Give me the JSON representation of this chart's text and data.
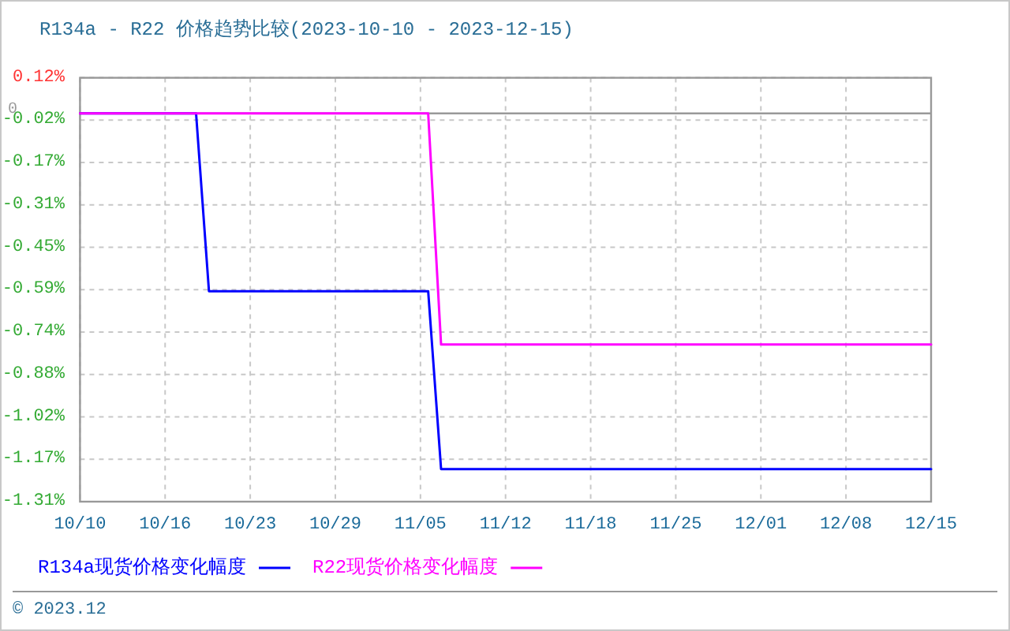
{
  "chart_data": {
    "type": "line",
    "title": "R134a - R22 价格趋势比较(2023-10-10 - 2023-12-15)",
    "series": [
      {
        "name": "R134a现货价格变化幅度",
        "color": "#0000ff",
        "x": [
          "2023-10-10",
          "2023-10-19",
          "2023-10-20",
          "2023-11-06",
          "2023-11-07",
          "2023-12-15"
        ],
        "values": [
          0,
          0,
          -0.6,
          -0.6,
          -1.2,
          -1.2
        ]
      },
      {
        "name": "R22现货价格变化幅度",
        "color": "#ff00ff",
        "x": [
          "2023-10-10",
          "2023-11-06",
          "2023-11-07",
          "2023-12-15"
        ],
        "values": [
          0,
          0,
          -0.78,
          -0.78
        ]
      }
    ],
    "xlim": [
      "2023-10-10",
      "2023-12-15"
    ],
    "xticks": [
      {
        "value": "2023-10-10",
        "label": "10/10"
      },
      {
        "value": "2023-10-16T14:24",
        "label": "10/16"
      },
      {
        "value": "2023-10-23T04:48",
        "label": "10/23"
      },
      {
        "value": "2023-10-29T19:12",
        "label": "10/29"
      },
      {
        "value": "2023-11-05T09:36",
        "label": "11/05"
      },
      {
        "value": "2023-11-12",
        "label": "11/12"
      },
      {
        "value": "2023-11-18T14:24",
        "label": "11/18"
      },
      {
        "value": "2023-11-25T04:48",
        "label": "11/25"
      },
      {
        "value": "2023-12-01T19:12",
        "label": "12/01"
      },
      {
        "value": "2023-12-08T09:36",
        "label": "12/08"
      },
      {
        "value": "2023-12-15",
        "label": "12/15"
      }
    ],
    "ylim": [
      -1.31,
      0.12
    ],
    "yticks": [
      {
        "value": 0.12,
        "label": "0.12%"
      },
      {
        "value": -0.023,
        "label": "-0.02%"
      },
      {
        "value": -0.166,
        "label": "-0.17%"
      },
      {
        "value": -0.309,
        "label": "-0.31%"
      },
      {
        "value": -0.452,
        "label": "-0.45%"
      },
      {
        "value": -0.595,
        "label": "-0.59%"
      },
      {
        "value": -0.738,
        "label": "-0.74%"
      },
      {
        "value": -0.881,
        "label": "-0.88%"
      },
      {
        "value": -1.024,
        "label": "-1.02%"
      },
      {
        "value": -1.167,
        "label": "-1.17%"
      },
      {
        "value": -1.31,
        "label": "-1.31%"
      }
    ],
    "ref_lines": [
      {
        "axis": "y",
        "value": 0,
        "label": "0",
        "color": "#999999",
        "line_style": "solid"
      }
    ],
    "grid": true,
    "legend": "bottom",
    "line_style": "solid",
    "annotations": [
      "© 2023.12"
    ]
  }
}
